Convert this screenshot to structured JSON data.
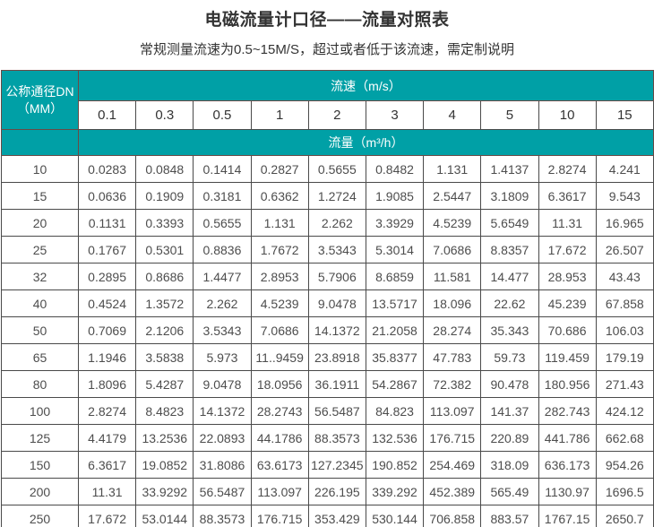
{
  "page": {
    "title": "电磁流量计口径——流量对照表",
    "subtitle": "常规测量流速为0.5~15M/S，超过或者低于该流速，需定制说明"
  },
  "colors": {
    "header_teal": "#00a0a6",
    "header_border": "#6b4a45",
    "grid_border": "#4a4a4a",
    "text_dark": "#333333",
    "text_data": "#4d4d4d"
  },
  "table": {
    "corner_header_line1": "公称通径DN",
    "corner_header_line2": "（MM）",
    "velocity_header": "流速（m/s）",
    "flow_header": "流量（m³/h）",
    "velocity_columns": [
      "0.1",
      "0.3",
      "0.5",
      "1",
      "2",
      "3",
      "4",
      "5",
      "10",
      "15"
    ],
    "rows": [
      {
        "dn": "10",
        "values": [
          "0.0283",
          "0.0848",
          "0.1414",
          "0.2827",
          "0.5655",
          "0.8482",
          "1.131",
          "1.4137",
          "2.8274",
          "4.241"
        ]
      },
      {
        "dn": "15",
        "values": [
          "0.0636",
          "0.1909",
          "0.3181",
          "0.6362",
          "1.2724",
          "1.9085",
          "2.5447",
          "3.1809",
          "6.3617",
          "9.543"
        ]
      },
      {
        "dn": "20",
        "values": [
          "0.1131",
          "0.3393",
          "0.5655",
          "1.131",
          "2.262",
          "3.3929",
          "4.5239",
          "5.6549",
          "11.31",
          "16.965"
        ]
      },
      {
        "dn": "25",
        "values": [
          "0.1767",
          "0.5301",
          "0.8836",
          "1.7672",
          "3.5343",
          "5.3014",
          "7.0686",
          "8.8357",
          "17.672",
          "26.507"
        ]
      },
      {
        "dn": "32",
        "values": [
          "0.2895",
          "0.8686",
          "1.4477",
          "2.8953",
          "5.7906",
          "8.6859",
          "11.581",
          "14.477",
          "28.953",
          "43.43"
        ]
      },
      {
        "dn": "40",
        "values": [
          "0.4524",
          "1.3572",
          "2.262",
          "4.5239",
          "9.0478",
          "13.5717",
          "18.096",
          "22.62",
          "45.239",
          "67.858"
        ]
      },
      {
        "dn": "50",
        "values": [
          "0.7069",
          "2.1206",
          "3.5343",
          "7.0686",
          "14.1372",
          "21.2058",
          "28.274",
          "35.343",
          "70.686",
          "106.03"
        ]
      },
      {
        "dn": "65",
        "values": [
          "1.1946",
          "3.5838",
          "5.973",
          "11..9459",
          "23.8918",
          "35.8377",
          "47.783",
          "59.73",
          "119.459",
          "179.19"
        ]
      },
      {
        "dn": "80",
        "values": [
          "1.8096",
          "5.4287",
          "9.0478",
          "18.0956",
          "36.1911",
          "54.2867",
          "72.382",
          "90.478",
          "180.956",
          "271.43"
        ]
      },
      {
        "dn": "100",
        "values": [
          "2.8274",
          "8.4823",
          "14.1372",
          "28.2743",
          "56.5487",
          "84.823",
          "113.097",
          "141.37",
          "282.743",
          "424.12"
        ]
      },
      {
        "dn": "125",
        "values": [
          "4.4179",
          "13.2536",
          "22.0893",
          "44.1786",
          "88.3573",
          "132.536",
          "176.715",
          "220.89",
          "441.786",
          "662.68"
        ]
      },
      {
        "dn": "150",
        "values": [
          "6.3617",
          "19.0852",
          "31.8086",
          "63.6173",
          "127.2345",
          "190.852",
          "254.469",
          "318.09",
          "636.173",
          "954.26"
        ]
      },
      {
        "dn": "200",
        "values": [
          "11.31",
          "33.9292",
          "56.5487",
          "113.097",
          "226.195",
          "339.292",
          "452.389",
          "565.49",
          "1130.97",
          "1696.5"
        ]
      },
      {
        "dn": "250",
        "values": [
          "17.672",
          "53.0144",
          "88.3573",
          "176.715",
          "353.429",
          "530.144",
          "706.858",
          "883.57",
          "1767.15",
          "2650.7"
        ]
      }
    ]
  }
}
